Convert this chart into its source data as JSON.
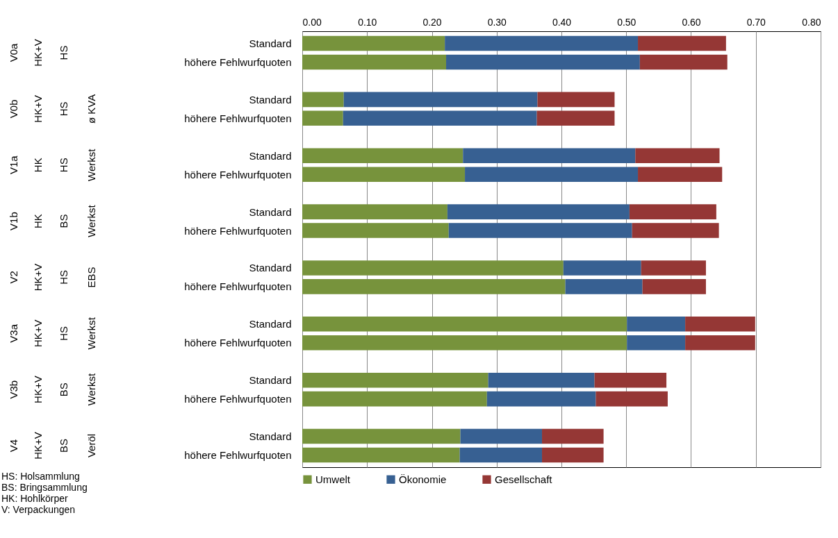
{
  "chart_data": {
    "type": "bar",
    "orientation": "horizontal",
    "stacked": true,
    "categories": [
      "Standard",
      "höhere Fehlwurfquoten",
      "Standard",
      "höhere Fehlwurfquoten",
      "Standard",
      "höhere Fehlwurfquoten",
      "Standard",
      "höhere Fehlwurfquoten",
      "Standard",
      "höhere Fehlwurfquoten",
      "Standard",
      "höhere Fehlwurfquoten",
      "Standard",
      "höhere Fehlwurfquoten",
      "Standard",
      "höhere Fehlwurfquoten"
    ],
    "series": [
      {
        "name": "Umwelt",
        "color": "#77933c",
        "values": [
          0.22,
          0.222,
          0.064,
          0.063,
          0.248,
          0.251,
          0.224,
          0.226,
          0.403,
          0.406,
          0.501,
          0.501,
          0.287,
          0.285,
          0.244,
          0.243
        ]
      },
      {
        "name": "Ökonomie",
        "color": "#376092",
        "values": [
          0.298,
          0.299,
          0.299,
          0.299,
          0.266,
          0.267,
          0.281,
          0.283,
          0.12,
          0.119,
          0.09,
          0.09,
          0.164,
          0.168,
          0.126,
          0.127
        ]
      },
      {
        "name": "Gesellschaft",
        "color": "#953735",
        "values": [
          0.136,
          0.135,
          0.119,
          0.12,
          0.13,
          0.13,
          0.134,
          0.134,
          0.1,
          0.098,
          0.108,
          0.108,
          0.111,
          0.111,
          0.095,
          0.095
        ]
      }
    ],
    "xlim": [
      0,
      0.8
    ],
    "xticks": [
      {
        "value": 0,
        "label": "0.00"
      },
      {
        "value": 0.1,
        "label": "0.10"
      },
      {
        "value": 0.2,
        "label": "0.20"
      },
      {
        "value": 0.3,
        "label": "0.30"
      },
      {
        "value": 0.4,
        "label": "0.40"
      },
      {
        "value": 0.5,
        "label": "0.50"
      },
      {
        "value": 0.6,
        "label": "0.60"
      },
      {
        "value": 0.7,
        "label": "0.70"
      },
      {
        "value": 0.8,
        "label": "0.80"
      }
    ],
    "grid": "x",
    "legend": "bottom",
    "annotations": [
      "V0a",
      "HK+V",
      "HS",
      "V0b",
      "HK+V",
      "HS",
      "ø KVA",
      "V1a",
      "HK",
      "HS",
      "Werkst",
      "V1b",
      "HK",
      "BS",
      "Werkst",
      "V2",
      "HK+V",
      "HS",
      "EBS",
      "V3a",
      "HK+V",
      "HS",
      "Werkst",
      "V3b",
      "HK+V",
      "BS",
      "Werkst",
      "V4",
      "HK+V",
      "BS",
      "Veröl",
      "HS: Holsammlung",
      "BS: Bringsammlung",
      "HK: Hohlkörper",
      "V:    Verpackungen"
    ]
  }
}
